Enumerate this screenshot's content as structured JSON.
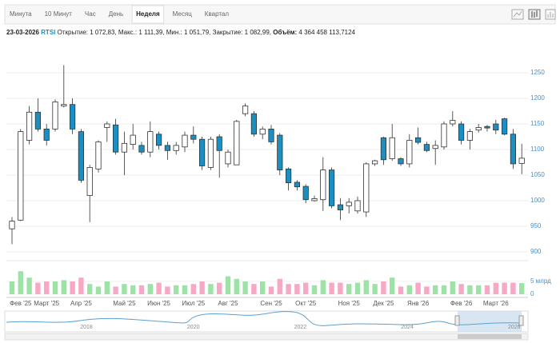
{
  "tabs": [
    "Минута",
    "10 Минут",
    "Час",
    "День",
    "Неделя",
    "Месяц",
    "Квартал"
  ],
  "active_tab": 4,
  "info": {
    "date": "23-03-2026",
    "ticker": "RTSI",
    "fields": [
      {
        "label": "Открытие:",
        "value": "1 072,83,"
      },
      {
        "label": "Макс.:",
        "value": "1 111,39,"
      },
      {
        "label": "Мин.:",
        "value": "1 051,79,"
      },
      {
        "label": "Закрытие:",
        "value": "1 082,99,"
      },
      {
        "label": "Объём:",
        "value": "4 364 458 113,7124"
      }
    ]
  },
  "chart_data": {
    "type": "candlestick",
    "categories": [
      null,
      "Фев '25",
      null,
      null,
      "Март '25",
      null,
      null,
      null,
      "Апр '25",
      null,
      null,
      null,
      null,
      "Май '25",
      null,
      null,
      null,
      "Июн '25",
      null,
      null,
      null,
      "Июл '25",
      null,
      null,
      null,
      "Авг '25",
      null,
      null,
      null,
      null,
      "Сен '25",
      null,
      null,
      null,
      "Окт '25",
      null,
      null,
      null,
      null,
      "Ноя '25",
      null,
      null,
      null,
      "Дек '25",
      null,
      null,
      null,
      "Янв '26",
      null,
      null,
      null,
      null,
      "Фев '26",
      null,
      null,
      null,
      "Март '26",
      null,
      null,
      null
    ],
    "open": [
      945,
      962,
      1118,
      1173,
      1140,
      1140,
      1185,
      1188,
      1135,
      1010,
      1062,
      1143,
      1148,
      1095,
      1110,
      1108,
      1095,
      1130,
      1108,
      1098,
      1105,
      1128,
      1120,
      1065,
      1125,
      1072,
      1070,
      1170,
      1170,
      1130,
      1140,
      1128,
      1062,
      1036,
      1028,
      1000,
      1002,
      1060,
      992,
      990,
      980,
      978,
      1072,
      1123,
      1082,
      1082,
      1072,
      1123,
      1110,
      1102,
      1105,
      1150,
      1150,
      1118,
      1138,
      1145,
      1150,
      1160,
      1130,
      1072.83
    ],
    "high": [
      968,
      1140,
      1185,
      1200,
      1150,
      1198,
      1265,
      1200,
      1140,
      1070,
      1118,
      1155,
      1160,
      1135,
      1150,
      1115,
      1155,
      1135,
      1115,
      1115,
      1135,
      1145,
      1125,
      1125,
      1130,
      1100,
      1158,
      1190,
      1175,
      1145,
      1148,
      1132,
      1065,
      1040,
      1032,
      1010,
      1085,
      1065,
      1005,
      1005,
      1008,
      1075,
      1080,
      1125,
      1150,
      1085,
      1130,
      1143,
      1115,
      1118,
      1155,
      1175,
      1155,
      1140,
      1150,
      1148,
      1158,
      1162,
      1140,
      1111.39
    ],
    "low": [
      915,
      960,
      1110,
      1135,
      1108,
      1135,
      1182,
      1130,
      1035,
      958,
      1055,
      1115,
      1090,
      1050,
      1100,
      1090,
      1085,
      1100,
      1080,
      1090,
      1095,
      1112,
      1060,
      1060,
      1045,
      1065,
      1070,
      1165,
      1125,
      1120,
      1110,
      1050,
      1020,
      1020,
      995,
      998,
      980,
      985,
      962,
      975,
      975,
      968,
      1068,
      1070,
      1078,
      1068,
      1065,
      1110,
      1095,
      1070,
      1100,
      1145,
      1110,
      1100,
      1133,
      1135,
      1130,
      1128,
      1062,
      1051.79
    ],
    "close": [
      960,
      1135,
      1173,
      1140,
      1118,
      1193,
      1188,
      1140,
      1040,
      1065,
      1115,
      1150,
      1095,
      1112,
      1128,
      1095,
      1135,
      1108,
      1098,
      1108,
      1128,
      1120,
      1068,
      1120,
      1098,
      1095,
      1155,
      1185,
      1130,
      1140,
      1115,
      1060,
      1035,
      1027,
      1002,
      1004,
      1060,
      990,
      982,
      997,
      1000,
      1072,
      1078,
      1080,
      1123,
      1072,
      1118,
      1114,
      1098,
      1108,
      1150,
      1157,
      1118,
      1135,
      1143,
      1142,
      1138,
      1130,
      1072,
      1082.99
    ],
    "volume": [
      5000000000.0,
      9000000000.0,
      6500000000.0,
      4500000000.0,
      5000000000.0,
      5000000000.0,
      5500000000.0,
      5000000000.0,
      6500000000.0,
      4000000000.0,
      3000000000.0,
      5000000000.0,
      3000000000.0,
      4000000000.0,
      3500000000.0,
      3500000000.0,
      4000000000.0,
      4500000000.0,
      3000000000.0,
      3500000000.0,
      3500000000.0,
      4000000000.0,
      5000000000.0,
      4000000000.0,
      4500000000.0,
      7000000000.0,
      6000000000.0,
      5000000000.0,
      4000000000.0,
      5000000000.0,
      3000000000.0,
      6000000000.0,
      4000000000.0,
      4000000000.0,
      4500000000.0,
      3500000000.0,
      5500000000.0,
      4500000000.0,
      4500000000.0,
      4000000000.0,
      4500000000.0,
      5500000000.0,
      4000000000.0,
      5000000000.0,
      6500000000.0,
      3000000000.0,
      3500000000.0,
      4500000000.0,
      3000000000.0,
      3500000000.0,
      3500000000.0,
      5000000000.0,
      4000000000.0,
      3500000000.0,
      3500000000.0,
      3500000000.0,
      4500000000.0,
      4500000000.0,
      4500000000.0,
      4364458113.7124
    ],
    "up_color": "#ffffff",
    "down_color": "#1a8fc4",
    "wick_color": "#333333",
    "volume_up_color": "#9ee3a6",
    "volume_down_color": "#f7a8c4",
    "ylim": [
      890,
      1300
    ],
    "yticks": [
      900,
      950,
      1000,
      1050,
      1100,
      1150,
      1200,
      1250
    ],
    "volume_ylim": [
      0,
      12000000000.0
    ],
    "volume_ticks": [
      0,
      {
        "value": 5000000000.0,
        "label": "5 млрд"
      }
    ],
    "grid": true,
    "navigator_years": [
      "2018",
      "2020",
      "2022",
      "2024",
      "2026"
    ]
  }
}
